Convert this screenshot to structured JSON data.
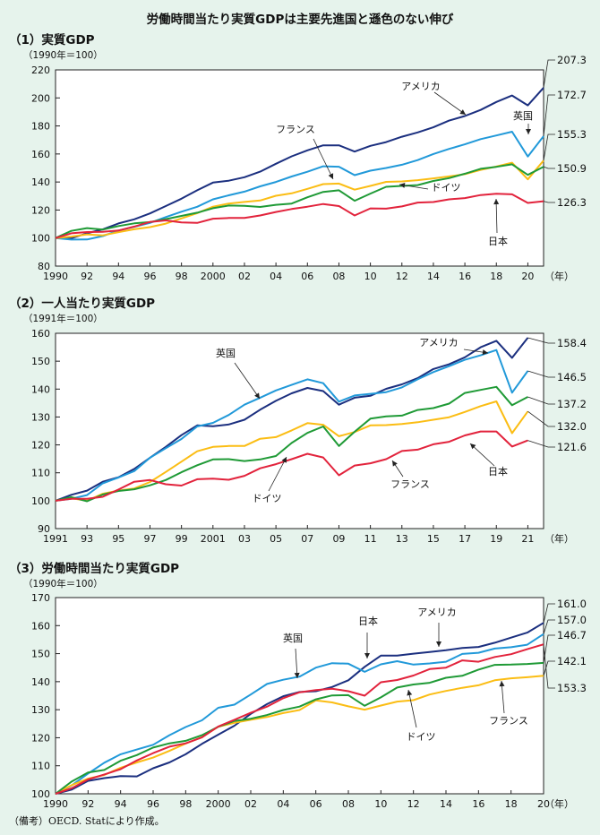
{
  "title": "労働時間当たり実質GDPは主要先進国と遜色のない伸び",
  "note": "（備考）OECD. Statにより作成。",
  "chart_data": [
    {
      "type": "line",
      "title": "（1）実質GDP",
      "units": "（1990年＝100）",
      "ylim": [
        80,
        220
      ],
      "yticks": [
        80,
        100,
        120,
        140,
        160,
        180,
        200,
        220
      ],
      "x": [
        1990,
        1991,
        1992,
        1993,
        1994,
        1995,
        1996,
        1997,
        1998,
        1999,
        2000,
        2001,
        2002,
        2003,
        2004,
        2005,
        2006,
        2007,
        2008,
        2009,
        2010,
        2011,
        2012,
        2013,
        2014,
        2015,
        2016,
        2017,
        2018,
        2019,
        2020,
        2021
      ],
      "xlim": [
        1990,
        2021
      ],
      "xticks": [
        1990,
        1992,
        1994,
        1996,
        1998,
        2000,
        2002,
        2004,
        2006,
        2008,
        2010,
        2012,
        2014,
        2016,
        2018,
        2020
      ],
      "xticklabels": [
        "1990",
        "92",
        "94",
        "96",
        "98",
        "2000",
        "02",
        "04",
        "06",
        "08",
        "10",
        "12",
        "14",
        "16",
        "18",
        "20"
      ],
      "xunit": "（年）",
      "series": [
        {
          "name": "アメリカ",
          "color": "#1b2f7f",
          "end_label": "207.3",
          "values": [
            100,
            99.9,
            103.4,
            106.2,
            110.4,
            113.4,
            117.6,
            122.8,
            128.1,
            134.1,
            139.6,
            140.9,
            143.4,
            147.4,
            153.0,
            158.3,
            162.6,
            166.2,
            166.2,
            161.7,
            165.8,
            168.5,
            172.3,
            175.4,
            179.0,
            183.8,
            187.1,
            191.4,
            197.1,
            201.7,
            194.7,
            207.3
          ]
        },
        {
          "name": "英国",
          "color": "#2199d9",
          "end_label": "172.7",
          "values": [
            100,
            98.9,
            99.0,
            101.4,
            105.4,
            108.0,
            110.8,
            115.0,
            118.8,
            122.3,
            127.6,
            130.5,
            133.1,
            136.9,
            140.0,
            143.9,
            147.3,
            151.2,
            150.9,
            144.9,
            148.1,
            150.0,
            152.3,
            155.6,
            160.0,
            163.6,
            166.9,
            170.6,
            173.2,
            175.9,
            158.2,
            172.7
          ]
        },
        {
          "name": "フランス",
          "color": "#fbbd14",
          "end_label": "155.3",
          "values": [
            100,
            101.0,
            102.6,
            101.9,
            104.2,
            106.3,
            107.8,
            110.3,
            114.0,
            117.8,
            122.4,
            124.6,
            125.8,
            126.8,
            130.2,
            131.9,
            135.1,
            138.5,
            138.9,
            134.5,
            137.2,
            140.1,
            140.4,
            141.3,
            142.6,
            144.0,
            145.6,
            148.6,
            151.0,
            153.8,
            141.9,
            155.3
          ]
        },
        {
          "name": "ドイツ",
          "color": "#1f9a36",
          "end_label": "150.9",
          "values": [
            100,
            105.1,
            107.1,
            106.0,
            108.6,
            110.5,
            111.4,
            113.5,
            115.8,
            118.1,
            121.3,
            123.2,
            123.0,
            122.2,
            123.7,
            124.6,
            129.1,
            132.9,
            134.1,
            126.6,
            131.7,
            136.6,
            137.2,
            137.8,
            140.7,
            142.8,
            145.9,
            149.4,
            150.8,
            152.6,
            145.1,
            150.9
          ]
        },
        {
          "name": "日本",
          "color": "#e2233c",
          "end_label": "126.3",
          "values": [
            100,
            103.4,
            104.3,
            104.5,
            105.4,
            108.2,
            111.5,
            112.6,
            111.2,
            110.8,
            113.8,
            114.3,
            114.4,
            116.1,
            118.6,
            120.7,
            122.4,
            124.3,
            122.8,
            116.1,
            121.2,
            121.0,
            122.6,
            125.3,
            125.7,
            127.6,
            128.5,
            130.7,
            131.6,
            131.2,
            125.1,
            126.3
          ]
        }
      ]
    },
    {
      "type": "line",
      "title": "（2）一人当たり実質GDP",
      "units": "（1991年＝100）",
      "ylim": [
        90,
        160
      ],
      "yticks": [
        90,
        100,
        110,
        120,
        130,
        140,
        150,
        160
      ],
      "x": [
        1991,
        1992,
        1993,
        1994,
        1995,
        1996,
        1997,
        1998,
        1999,
        2000,
        2001,
        2002,
        2003,
        2004,
        2005,
        2006,
        2007,
        2008,
        2009,
        2010,
        2011,
        2012,
        2013,
        2014,
        2015,
        2016,
        2017,
        2018,
        2019,
        2020,
        2021
      ],
      "xlim": [
        1991,
        2022
      ],
      "xticks": [
        1991,
        1993,
        1995,
        1997,
        1999,
        2001,
        2003,
        2005,
        2007,
        2009,
        2011,
        2013,
        2015,
        2017,
        2019,
        2021
      ],
      "xticklabels": [
        "1991",
        "93",
        "95",
        "97",
        "99",
        "2001",
        "03",
        "05",
        "07",
        "09",
        "11",
        "13",
        "15",
        "17",
        "19",
        "21"
      ],
      "xunit": "（年）",
      "series": [
        {
          "name": "アメリカ",
          "color": "#1b2f7f",
          "end_label": "158.4",
          "values": [
            100,
            102.1,
            103.6,
            106.8,
            108.4,
            111.4,
            115.4,
            119.3,
            123.5,
            127.0,
            126.7,
            127.3,
            129.0,
            132.6,
            135.8,
            138.5,
            140.4,
            139.3,
            134.4,
            136.9,
            137.6,
            140.1,
            141.7,
            143.9,
            147.2,
            148.9,
            151.4,
            155.0,
            157.3,
            151.2,
            158.4
          ]
        },
        {
          "name": "英国",
          "color": "#2199d9",
          "end_label": "146.5",
          "values": [
            100,
            100.7,
            102.0,
            106.2,
            108.3,
            110.6,
            115.4,
            118.8,
            122.1,
            126.6,
            127.9,
            130.7,
            134.4,
            136.9,
            139.5,
            141.5,
            143.5,
            142.1,
            135.5,
            137.7,
            138.3,
            138.9,
            140.6,
            143.5,
            146.1,
            148.2,
            150.5,
            152.1,
            154.0,
            138.7,
            146.5
          ]
        },
        {
          "name": "フランス",
          "color": "#fbbd14",
          "end_label": "132.0",
          "values": [
            100,
            100.9,
            100.0,
            102.5,
            103.6,
            104.4,
            106.7,
            110.3,
            114.0,
            117.7,
            119.3,
            119.6,
            119.6,
            122.2,
            122.8,
            125.2,
            127.8,
            127.2,
            123.1,
            124.6,
            127.0,
            127.1,
            127.5,
            128.1,
            129.0,
            129.9,
            131.8,
            133.9,
            135.6,
            124.2,
            132.0
          ]
        },
        {
          "name": "ドイツ",
          "color": "#1f9a36",
          "end_label": "137.2",
          "values": [
            100,
            101.3,
            99.8,
            102.2,
            103.5,
            104.1,
            105.5,
            107.4,
            110.2,
            112.7,
            114.8,
            114.9,
            114.2,
            114.8,
            116.0,
            120.7,
            124.3,
            126.6,
            119.6,
            124.7,
            129.4,
            130.2,
            130.5,
            132.5,
            133.2,
            134.8,
            138.6,
            139.7,
            140.8,
            134.2,
            137.2
          ]
        },
        {
          "name": "日本",
          "color": "#e2233c",
          "end_label": "121.6",
          "values": [
            100,
            100.7,
            100.7,
            101.4,
            104.0,
            106.8,
            107.4,
            105.9,
            105.4,
            107.7,
            107.9,
            107.5,
            108.9,
            111.6,
            113.1,
            114.9,
            116.8,
            115.5,
            109.1,
            112.6,
            113.4,
            114.9,
            117.8,
            118.3,
            120.2,
            121.1,
            123.4,
            124.8,
            124.8,
            119.4,
            121.6
          ]
        }
      ]
    },
    {
      "type": "line",
      "title": "（3）労働時間当たり実質GDP",
      "units": "（1990年＝100）",
      "ylim": [
        100,
        170
      ],
      "yticks": [
        100,
        110,
        120,
        130,
        140,
        150,
        160,
        170
      ],
      "x": [
        1990,
        1991,
        1992,
        1993,
        1994,
        1995,
        1996,
        1997,
        1998,
        1999,
        2000,
        2001,
        2002,
        2003,
        2004,
        2005,
        2006,
        2007,
        2008,
        2009,
        2010,
        2011,
        2012,
        2013,
        2014,
        2015,
        2016,
        2017,
        2018,
        2019,
        2020
      ],
      "xlim": [
        1990,
        2020
      ],
      "xticks": [
        1990,
        1992,
        1994,
        1996,
        1998,
        2000,
        2002,
        2004,
        2006,
        2008,
        2010,
        2012,
        2014,
        2016,
        2018,
        2020
      ],
      "xticklabels": [
        "1990",
        "92",
        "94",
        "96",
        "98",
        "2000",
        "02",
        "04",
        "06",
        "08",
        "10",
        "12",
        "14",
        "16",
        "18",
        "20"
      ],
      "xunit": "（年）",
      "series": [
        {
          "name": "アメリカ",
          "color": "#1b2f7f",
          "end_label": "161.0",
          "values": [
            100,
            101.5,
            104.6,
            105.6,
            106.3,
            106.2,
            109.1,
            111.2,
            114.1,
            117.8,
            121.1,
            124.3,
            128.5,
            132.0,
            134.8,
            136.3,
            136.6,
            138.1,
            140.5,
            145.3,
            149.3,
            149.3,
            150.0,
            150.6,
            151.2,
            152.0,
            152.4,
            153.9,
            155.7,
            157.5,
            161.0
          ]
        },
        {
          "name": "英国",
          "color": "#2199d9",
          "end_label": "157.0",
          "values": [
            100,
            103.0,
            107.2,
            111.1,
            114.1,
            115.8,
            117.5,
            120.9,
            123.8,
            126.2,
            130.7,
            131.8,
            135.4,
            139.2,
            140.7,
            141.8,
            145.0,
            146.6,
            146.4,
            143.5,
            146.2,
            147.3,
            146.1,
            146.5,
            147.1,
            149.9,
            150.3,
            151.8,
            152.3,
            153.2,
            157.0
          ]
        },
        {
          "name": "フランス",
          "color": "#fbbd14",
          "end_label": "142.1",
          "values": [
            100,
            103.1,
            105.4,
            106.7,
            109.3,
            111.2,
            112.9,
            115.3,
            117.9,
            120.2,
            123.9,
            125.3,
            126.4,
            127.4,
            128.8,
            129.9,
            133.3,
            132.6,
            131.2,
            130.0,
            131.5,
            132.9,
            133.4,
            135.4,
            136.7,
            137.8,
            138.7,
            140.5,
            141.2,
            141.6,
            142.1
          ]
        },
        {
          "name": "ドイツ",
          "color": "#1f9a36",
          "end_label": "146.7",
          "values": [
            100,
            104.4,
            107.6,
            108.5,
            111.8,
            113.8,
            116.5,
            118.0,
            118.9,
            120.9,
            123.9,
            126.0,
            126.8,
            128.1,
            129.9,
            131.1,
            133.7,
            135.1,
            135.2,
            131.4,
            134.4,
            137.9,
            139.0,
            139.6,
            141.4,
            142.1,
            144.3,
            146.0,
            146.1,
            146.3,
            146.7
          ]
        },
        {
          "name": "日本",
          "color": "#e2233c",
          "end_label": "153.3",
          "values": [
            100,
            102.0,
            105.1,
            106.9,
            108.8,
            111.9,
            114.5,
            116.8,
            118.0,
            120.1,
            124.0,
            126.4,
            128.9,
            131.1,
            134.1,
            136.2,
            137.0,
            137.5,
            136.6,
            135.0,
            139.8,
            140.6,
            142.2,
            144.5,
            145.0,
            147.6,
            147.1,
            148.8,
            149.8,
            151.6,
            153.3
          ]
        }
      ]
    }
  ]
}
